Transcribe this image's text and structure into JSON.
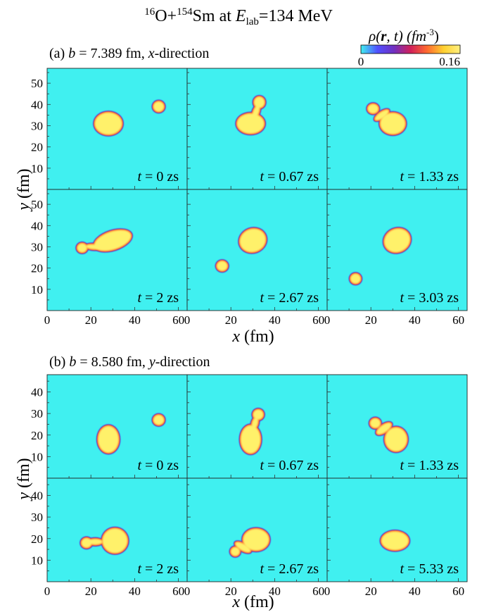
{
  "title": {
    "nuc1_mass": "16",
    "nuc1": "O+",
    "nuc2_mass": "154",
    "nuc2": "Sm at ",
    "e_symbol": "E",
    "e_sub": "lab",
    "e_value": "=134 MeV"
  },
  "colorbar": {
    "label_rho": "ρ(",
    "label_r": "r",
    "label_t": ", t) (fm",
    "label_exp": "-3",
    "label_close": ")",
    "min_label": "0",
    "max_label": "0.16",
    "min": 0,
    "max": 0.16,
    "colors": [
      "#40f0f0",
      "#5050ff",
      "#7030c0",
      "#d0205a",
      "#ff6a30",
      "#ffd030",
      "#fff080"
    ]
  },
  "colors": {
    "background": "#40f0f0",
    "rim_blue": "#4466ff",
    "rim_purple": "#6a2ea8",
    "rim_red": "#e02a50",
    "orange": "#ff7a2a",
    "core_yellow": "#fff16a"
  },
  "axes": {
    "ylabel_sym": "y",
    "ylabel_unit": " (fm)",
    "xlabel_sym": "x",
    "xlabel_unit": " (fm)",
    "x_ticks": [
      "0",
      "20",
      "40",
      "60"
    ]
  },
  "chart_data": [
    {
      "type": "heatmap",
      "panel_label": {
        "prefix": "(a) ",
        "b_sym": "b",
        "b_value": " = 7.389 fm, ",
        "dir_sym": "x",
        "dir_text": "-direction"
      },
      "xlim": [
        0,
        64
      ],
      "ylim": [
        0,
        57
      ],
      "y_ticks": [
        "10",
        "20",
        "30",
        "40",
        "50"
      ],
      "snapshots": [
        {
          "time_prefix": "t",
          "time_value": " = 0 zs",
          "blobs": [
            {
              "x": 28,
              "y": 31,
              "rx": 6.5,
              "ry": 5.5,
              "rot": 0
            },
            {
              "x": 51,
              "y": 39,
              "rx": 2.7,
              "ry": 2.7,
              "rot": 0
            }
          ]
        },
        {
          "time_prefix": "t",
          "time_value": " = 0.67 zs",
          "blobs": [
            {
              "x": 29,
              "y": 31,
              "rx": 6.5,
              "ry": 5,
              "rot": 0
            },
            {
              "x": 33,
              "y": 41,
              "rx": 2.7,
              "ry": 2.9,
              "rot": 0
            },
            {
              "x": 31.5,
              "y": 36.5,
              "rx": 1.6,
              "ry": 3.5,
              "rot": 20
            }
          ]
        },
        {
          "time_prefix": "t",
          "time_value": " = 1.33 zs",
          "blobs": [
            {
              "x": 30,
              "y": 31,
              "rx": 6,
              "ry": 5.3,
              "rot": 0
            },
            {
              "x": 21,
              "y": 38,
              "rx": 2.7,
              "ry": 2.5,
              "rot": 0
            },
            {
              "x": 25,
              "y": 35,
              "rx": 4,
              "ry": 1.7,
              "rot": -35
            }
          ]
        },
        {
          "time_prefix": "t",
          "time_value": " = 2 zs",
          "blobs": [
            {
              "x": 30,
              "y": 33,
              "rx": 9,
              "ry": 4.5,
              "rot": -18
            },
            {
              "x": 16,
              "y": 29.5,
              "rx": 2.5,
              "ry": 2.4,
              "rot": 0
            },
            {
              "x": 21,
              "y": 30,
              "rx": 3.5,
              "ry": 1.4,
              "rot": 5
            }
          ]
        },
        {
          "time_prefix": "t",
          "time_value": " = 2.67 zs",
          "blobs": [
            {
              "x": 30,
              "y": 33,
              "rx": 6.3,
              "ry": 5.7,
              "rot": -20
            },
            {
              "x": 16,
              "y": 21,
              "rx": 2.7,
              "ry": 2.6,
              "rot": 0
            }
          ]
        },
        {
          "time_prefix": "t",
          "time_value": " = 3.03 zs",
          "blobs": [
            {
              "x": 32,
              "y": 33,
              "rx": 6.3,
              "ry": 5.7,
              "rot": -25
            },
            {
              "x": 13,
              "y": 15,
              "rx": 2.6,
              "ry": 2.6,
              "rot": 0
            }
          ]
        }
      ]
    },
    {
      "type": "heatmap",
      "panel_label": {
        "prefix": "(b) ",
        "b_sym": "b",
        "b_value": " = 8.580 fm, ",
        "dir_sym": "y",
        "dir_text": "-direction"
      },
      "xlim": [
        0,
        64
      ],
      "ylim": [
        0,
        48
      ],
      "y_ticks": [
        "10",
        "20",
        "30",
        "40"
      ],
      "snapshots": [
        {
          "time_prefix": "t",
          "time_value": " = 0 zs",
          "blobs": [
            {
              "x": 28,
              "y": 18,
              "rx": 5,
              "ry": 6.5,
              "rot": 0
            },
            {
              "x": 51,
              "y": 27,
              "rx": 2.7,
              "ry": 2.6,
              "rot": 0
            }
          ]
        },
        {
          "time_prefix": "t",
          "time_value": " = 0.67 zs",
          "blobs": [
            {
              "x": 29,
              "y": 18,
              "rx": 4.8,
              "ry": 6.8,
              "rot": 0
            },
            {
              "x": 32.5,
              "y": 29.5,
              "rx": 2.6,
              "ry": 2.6,
              "rot": 0
            },
            {
              "x": 31,
              "y": 25.5,
              "rx": 1.6,
              "ry": 3,
              "rot": 15
            }
          ]
        },
        {
          "time_prefix": "t",
          "time_value": " = 1.33 zs",
          "blobs": [
            {
              "x": 31.5,
              "y": 18,
              "rx": 5.3,
              "ry": 5.8,
              "rot": 0
            },
            {
              "x": 22,
              "y": 25.5,
              "rx": 2.6,
              "ry": 2.5,
              "rot": 0
            },
            {
              "x": 26,
              "y": 23,
              "rx": 4.2,
              "ry": 2,
              "rot": -35
            }
          ]
        },
        {
          "time_prefix": "t",
          "time_value": " = 2 zs",
          "blobs": [
            {
              "x": 31,
              "y": 19,
              "rx": 6,
              "ry": 6,
              "rot": 0
            },
            {
              "x": 18,
              "y": 18,
              "rx": 2.6,
              "ry": 2.5,
              "rot": 0
            },
            {
              "x": 22,
              "y": 18.5,
              "rx": 3.5,
              "ry": 1.6,
              "rot": 0
            }
          ]
        },
        {
          "time_prefix": "t",
          "time_value": " = 2.67 zs",
          "blobs": [
            {
              "x": 31.5,
              "y": 19.5,
              "rx": 6.2,
              "ry": 5.3,
              "rot": 0
            },
            {
              "x": 22,
              "y": 14,
              "rx": 2.3,
              "ry": 2.3,
              "rot": 0
            },
            {
              "x": 25.5,
              "y": 16,
              "rx": 4.2,
              "ry": 1.8,
              "rot": 30
            }
          ]
        },
        {
          "time_prefix": "t",
          "time_value": " = 5.33 zs",
          "blobs": [
            {
              "x": 31,
              "y": 19,
              "rx": 6.5,
              "ry": 4.6,
              "rot": 0
            }
          ]
        }
      ]
    }
  ]
}
